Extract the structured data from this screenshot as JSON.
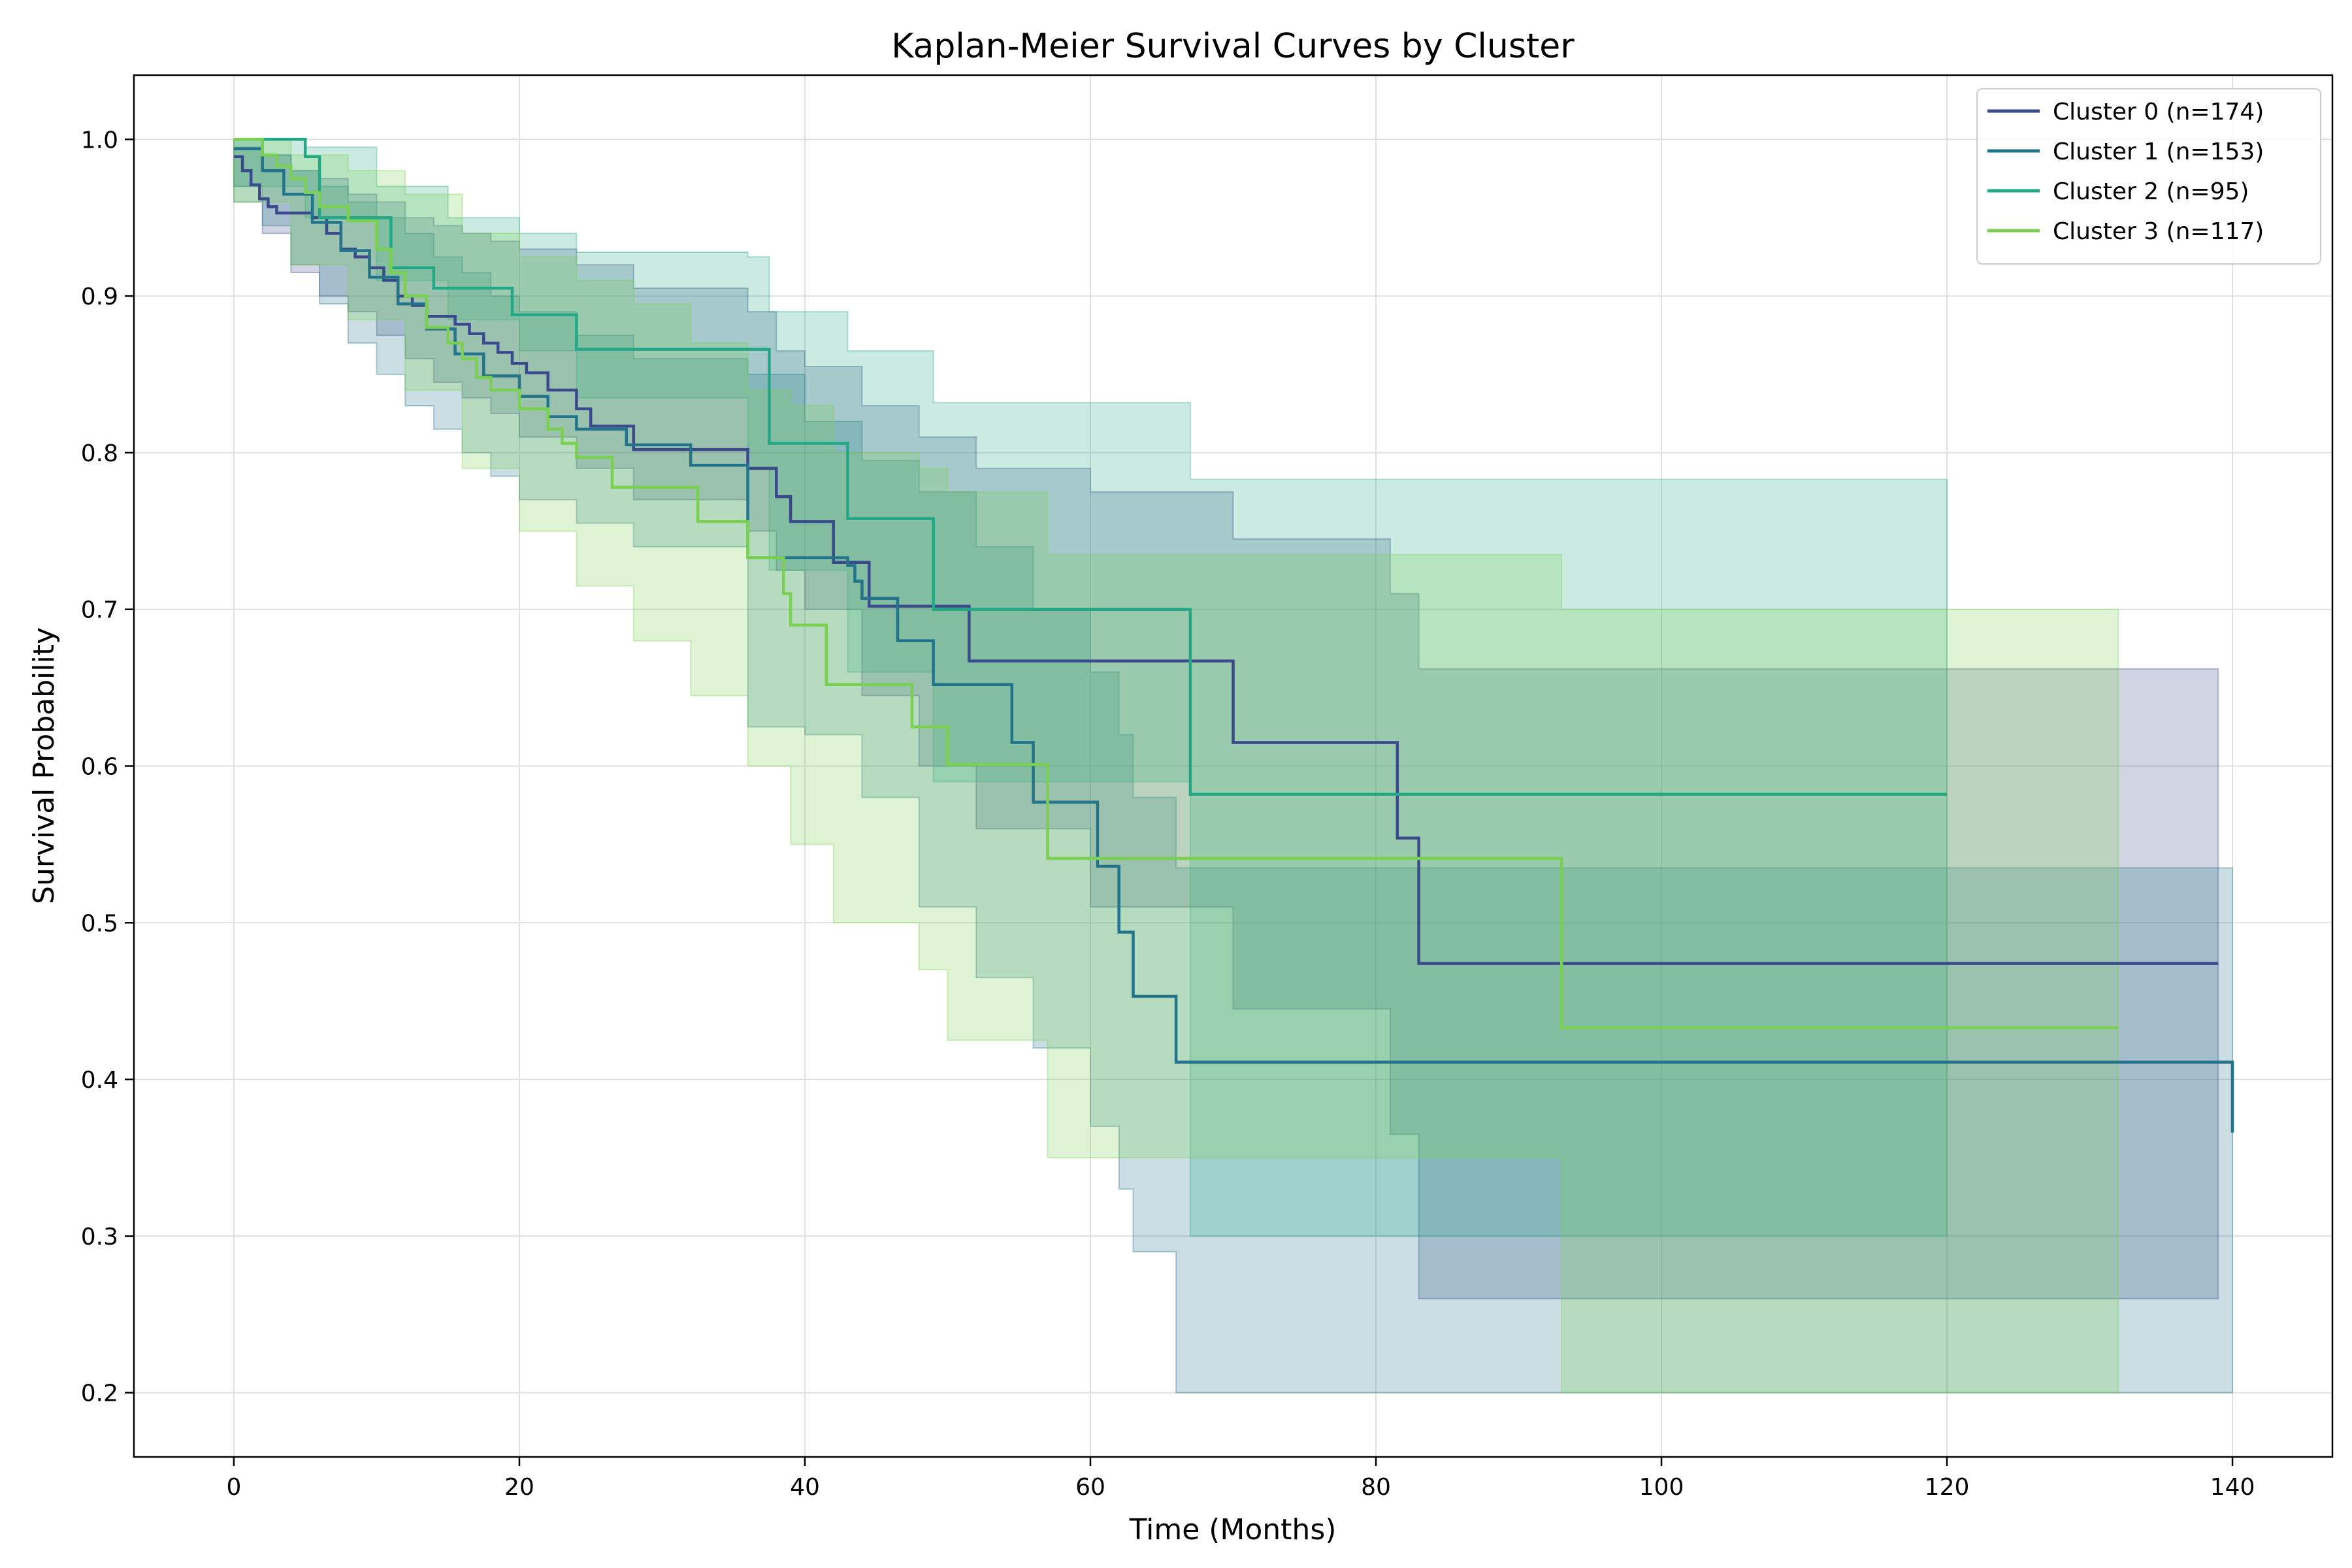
{
  "chart_data": {
    "type": "line",
    "title": "Kaplan-Meier Survival Curves by Cluster",
    "xlabel": "Time (Months)",
    "ylabel": "Survival Probability",
    "xlim": [
      -7,
      147
    ],
    "ylim": [
      0.159,
      1.041
    ],
    "xticks": [
      0,
      20,
      40,
      60,
      80,
      100,
      120,
      140
    ],
    "yticks": [
      0.2,
      0.3,
      0.4,
      0.5,
      0.6,
      0.7,
      0.8,
      0.9,
      1.0
    ],
    "ytick_labels": [
      "0.2",
      "0.3",
      "0.4",
      "0.5",
      "0.6",
      "0.7",
      "0.8",
      "0.9",
      "1.0"
    ],
    "grid": true,
    "legend_position": "top-right",
    "step": "post",
    "series": [
      {
        "name": "Cluster 0 (n=174)",
        "color": "#3b4a8a",
        "x": [
          0,
          0.6,
          1.2,
          1.8,
          2.4,
          3,
          4,
          5.5,
          6.5,
          7.5,
          8.5,
          9.5,
          10.5,
          11.5,
          12.5,
          13.5,
          15.5,
          16.5,
          17.5,
          18.5,
          19.5,
          20.5,
          22,
          24,
          25,
          28,
          36,
          38,
          39,
          42,
          44.5,
          51.5,
          70,
          81.5,
          83,
          139
        ],
        "y": [
          0.989,
          0.98,
          0.971,
          0.962,
          0.957,
          0.953,
          0.953,
          0.95,
          0.94,
          0.93,
          0.925,
          0.918,
          0.91,
          0.9,
          0.894,
          0.887,
          0.882,
          0.876,
          0.87,
          0.864,
          0.857,
          0.851,
          0.84,
          0.828,
          0.817,
          0.802,
          0.79,
          0.772,
          0.756,
          0.73,
          0.702,
          0.667,
          0.615,
          0.554,
          0.474,
          0.474
        ],
        "ci_x": [
          0,
          2,
          4,
          6,
          8,
          10,
          12,
          14,
          16,
          18,
          20,
          24,
          28,
          36,
          38,
          40,
          44,
          48,
          52,
          60,
          70,
          81,
          83,
          139
        ],
        "ci_upper": [
          0.995,
          0.99,
          0.98,
          0.975,
          0.965,
          0.96,
          0.95,
          0.945,
          0.94,
          0.935,
          0.93,
          0.92,
          0.905,
          0.89,
          0.865,
          0.855,
          0.83,
          0.81,
          0.79,
          0.775,
          0.745,
          0.71,
          0.662,
          0.662
        ],
        "ci_lower": [
          0.97,
          0.94,
          0.915,
          0.9,
          0.89,
          0.875,
          0.86,
          0.845,
          0.835,
          0.825,
          0.81,
          0.79,
          0.77,
          0.75,
          0.725,
          0.7,
          0.645,
          0.6,
          0.56,
          0.51,
          0.445,
          0.365,
          0.26,
          0.26
        ]
      },
      {
        "name": "Cluster 1 (n=153)",
        "color": "#23748a",
        "x": [
          0,
          2,
          3.5,
          5.5,
          7.5,
          9.5,
          11.5,
          13.5,
          15.5,
          17.5,
          20,
          22,
          24,
          27.5,
          32,
          36,
          41,
          43,
          43.5,
          44,
          46.5,
          49,
          54.5,
          56,
          60.5,
          62,
          63,
          66,
          140
        ],
        "y": [
          0.994,
          0.98,
          0.965,
          0.947,
          0.929,
          0.912,
          0.895,
          0.879,
          0.863,
          0.849,
          0.836,
          0.823,
          0.815,
          0.805,
          0.792,
          0.733,
          0.733,
          0.728,
          0.718,
          0.707,
          0.68,
          0.652,
          0.615,
          0.577,
          0.536,
          0.494,
          0.453,
          0.411,
          0.366
        ],
        "ci_x": [
          0,
          2,
          4,
          6,
          8,
          10,
          12,
          14,
          16,
          18,
          20,
          24,
          28,
          36,
          40,
          44,
          48,
          52,
          56,
          60,
          62,
          63,
          66,
          140
        ],
        "ci_upper": [
          1.0,
          0.99,
          0.98,
          0.97,
          0.96,
          0.95,
          0.94,
          0.925,
          0.915,
          0.9,
          0.89,
          0.875,
          0.86,
          0.85,
          0.82,
          0.795,
          0.775,
          0.74,
          0.7,
          0.66,
          0.62,
          0.58,
          0.535,
          0.535
        ],
        "ci_lower": [
          0.96,
          0.945,
          0.92,
          0.895,
          0.87,
          0.85,
          0.83,
          0.815,
          0.8,
          0.785,
          0.77,
          0.755,
          0.74,
          0.625,
          0.62,
          0.58,
          0.51,
          0.465,
          0.42,
          0.37,
          0.33,
          0.29,
          0.2,
          0.2
        ]
      },
      {
        "name": "Cluster 2 (n=95)",
        "color": "#22a884",
        "x": [
          0,
          5,
          6,
          11,
          14,
          19.5,
          24,
          36,
          37.5,
          43,
          49,
          67,
          120
        ],
        "y": [
          1.0,
          0.989,
          0.95,
          0.918,
          0.905,
          0.888,
          0.866,
          0.866,
          0.806,
          0.758,
          0.7,
          0.582,
          0.582
        ],
        "ci_x": [
          0,
          5,
          10,
          15,
          20,
          24,
          36,
          37.5,
          43,
          49,
          67,
          120
        ],
        "ci_upper": [
          1.0,
          0.995,
          0.97,
          0.95,
          0.94,
          0.928,
          0.925,
          0.89,
          0.865,
          0.832,
          0.783,
          0.783
        ],
        "ci_lower": [
          0.97,
          0.95,
          0.91,
          0.885,
          0.865,
          0.835,
          0.79,
          0.725,
          0.66,
          0.59,
          0.3,
          0.3
        ]
      },
      {
        "name": "Cluster 3 (n=117)",
        "color": "#7ad151",
        "x": [
          0,
          2,
          3,
          4,
          5,
          6,
          8,
          10,
          11,
          12,
          13.5,
          15,
          16,
          17,
          18,
          20,
          22,
          23,
          24,
          26.5,
          32.5,
          36,
          38.5,
          39,
          41.5,
          47.5,
          50,
          57,
          93,
          132
        ],
        "y": [
          1.0,
          0.99,
          0.983,
          0.975,
          0.966,
          0.957,
          0.948,
          0.93,
          0.915,
          0.9,
          0.88,
          0.87,
          0.86,
          0.848,
          0.84,
          0.828,
          0.815,
          0.806,
          0.797,
          0.778,
          0.756,
          0.733,
          0.71,
          0.69,
          0.652,
          0.625,
          0.601,
          0.541,
          0.433,
          0.433
        ],
        "ci_x": [
          0,
          4,
          8,
          12,
          16,
          20,
          24,
          28,
          32,
          36,
          39,
          42,
          48,
          50,
          57,
          93,
          132
        ],
        "ci_upper": [
          1.0,
          0.99,
          0.98,
          0.965,
          0.94,
          0.925,
          0.91,
          0.895,
          0.87,
          0.84,
          0.83,
          0.8,
          0.79,
          0.775,
          0.735,
          0.7,
          0.649
        ],
        "ci_lower": [
          0.96,
          0.92,
          0.885,
          0.84,
          0.79,
          0.75,
          0.715,
          0.68,
          0.645,
          0.6,
          0.55,
          0.5,
          0.47,
          0.425,
          0.35,
          0.2,
          0.2
        ]
      }
    ]
  }
}
